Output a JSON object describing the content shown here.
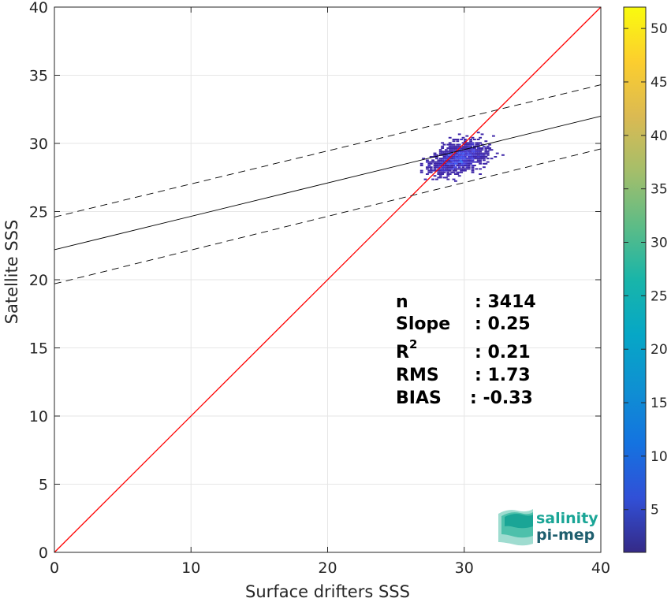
{
  "chart_data": {
    "type": "heatmap",
    "xlabel": "Surface drifters SSS",
    "ylabel": "Satellite SSS",
    "xlim": [
      0,
      40
    ],
    "ylim": [
      0,
      40
    ],
    "x_ticks": [
      "0",
      "10",
      "20",
      "30",
      "40"
    ],
    "y_ticks": [
      "0",
      "5",
      "10",
      "15",
      "20",
      "25",
      "30",
      "35",
      "40"
    ],
    "grid": true,
    "colorbar": {
      "range": [
        1,
        52
      ],
      "ticks": [
        "5",
        "10",
        "15",
        "20",
        "25",
        "30",
        "35",
        "40",
        "45",
        "50"
      ],
      "colormap": "parula"
    },
    "density_cloud": {
      "x_range": [
        22.9,
        32.9
      ],
      "y_range": [
        26.0,
        32.5
      ],
      "center": [
        29.5,
        29.0
      ],
      "typical_count": 1,
      "max_count": 12
    },
    "lines": [
      {
        "name": "identity",
        "color": "#ff0000",
        "style": "solid",
        "x": [
          0,
          40
        ],
        "y": [
          0,
          40
        ]
      },
      {
        "name": "fit",
        "color": "#000000",
        "style": "solid",
        "x": [
          0,
          40
        ],
        "y": [
          22.2,
          32.0
        ]
      },
      {
        "name": "fit_upper",
        "color": "#000000",
        "style": "dashed",
        "x": [
          0,
          40
        ],
        "y": [
          24.6,
          34.3
        ]
      },
      {
        "name": "fit_lower",
        "color": "#000000",
        "style": "dashed",
        "x": [
          0,
          40
        ],
        "y": [
          19.7,
          29.6
        ]
      }
    ],
    "stats": [
      {
        "label": "n",
        "value": ": 3414"
      },
      {
        "label": "Slope",
        "value": ": 0.25"
      },
      {
        "label": "R",
        "sup": "2",
        "value": ": 0.21"
      },
      {
        "label": "RMS",
        "value": ": 1.73"
      },
      {
        "label": "BIAS",
        "value": ": -0.33"
      }
    ]
  },
  "logo": {
    "line1": "salinity",
    "line2": "pi-mep"
  },
  "colors": {
    "identity_line": "#ff0000",
    "fit_line": "#000000",
    "low_density": "#3d2db5",
    "logo_teal": "#1aa596",
    "logo_dark": "#1e5e6e"
  }
}
